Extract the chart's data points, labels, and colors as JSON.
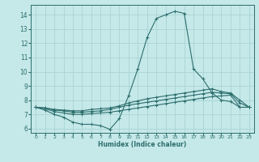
{
  "xlabel": "Humidex (Indice chaleur)",
  "xlim": [
    -0.5,
    23.5
  ],
  "ylim": [
    5.7,
    14.7
  ],
  "xticks": [
    0,
    1,
    2,
    3,
    4,
    5,
    6,
    7,
    8,
    9,
    10,
    11,
    12,
    13,
    14,
    15,
    16,
    17,
    18,
    19,
    20,
    21,
    22,
    23
  ],
  "yticks": [
    6,
    7,
    8,
    9,
    10,
    11,
    12,
    13,
    14
  ],
  "background_color": "#c5e8e8",
  "line_color": "#2d6e6e",
  "grid_color": "#aad4d4",
  "lines": [
    {
      "x": [
        0,
        1,
        2,
        3,
        4,
        5,
        6,
        7,
        8,
        9,
        10,
        11,
        12,
        13,
        14,
        15,
        16,
        17,
        18,
        19,
        20,
        21,
        22
      ],
      "y": [
        7.5,
        7.3,
        7.0,
        6.8,
        6.45,
        6.3,
        6.3,
        6.2,
        5.95,
        6.7,
        8.3,
        10.2,
        12.4,
        13.75,
        14.0,
        14.25,
        14.1,
        10.2,
        9.5,
        8.5,
        8.0,
        7.9,
        7.5
      ]
    },
    {
      "x": [
        0,
        1,
        2,
        3,
        4,
        5,
        6,
        7,
        8,
        9,
        10,
        11,
        12,
        13,
        14,
        15,
        16,
        17,
        18,
        19,
        20,
        21,
        22,
        23
      ],
      "y": [
        7.5,
        7.4,
        7.2,
        7.1,
        7.0,
        7.0,
        7.05,
        7.1,
        7.15,
        7.25,
        7.35,
        7.45,
        7.55,
        7.65,
        7.75,
        7.85,
        7.95,
        8.05,
        8.15,
        8.25,
        8.3,
        8.35,
        7.5,
        7.5
      ]
    },
    {
      "x": [
        0,
        1,
        2,
        3,
        4,
        5,
        6,
        7,
        8,
        9,
        10,
        11,
        12,
        13,
        14,
        15,
        16,
        17,
        18,
        19,
        20,
        21,
        22,
        23
      ],
      "y": [
        7.5,
        7.45,
        7.3,
        7.25,
        7.15,
        7.15,
        7.2,
        7.25,
        7.35,
        7.5,
        7.65,
        7.75,
        7.85,
        7.95,
        8.05,
        8.15,
        8.25,
        8.35,
        8.45,
        8.55,
        8.5,
        8.45,
        7.8,
        7.5
      ]
    },
    {
      "x": [
        0,
        1,
        2,
        3,
        4,
        5,
        6,
        7,
        8,
        9,
        10,
        11,
        12,
        13,
        14,
        15,
        16,
        17,
        18,
        19,
        20,
        21,
        22,
        23
      ],
      "y": [
        7.5,
        7.45,
        7.35,
        7.3,
        7.25,
        7.25,
        7.35,
        7.4,
        7.45,
        7.6,
        7.8,
        7.95,
        8.1,
        8.2,
        8.3,
        8.4,
        8.5,
        8.6,
        8.7,
        8.8,
        8.6,
        8.5,
        8.0,
        7.5
      ]
    }
  ]
}
